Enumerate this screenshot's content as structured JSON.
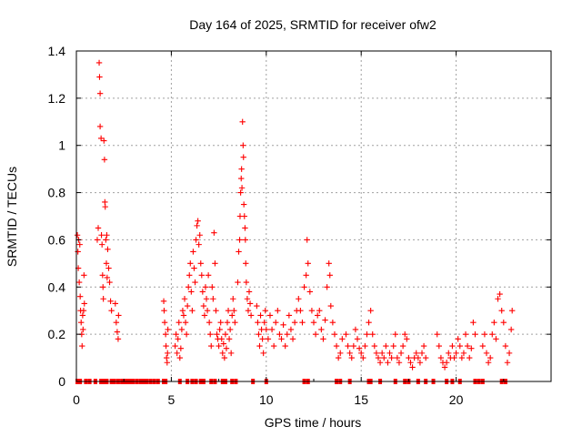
{
  "chart_data": {
    "type": "scatter",
    "title": "Day 164 of 2025, SRMTID for receiver ofw2",
    "xlabel": "GPS time / hours",
    "ylabel": "SRMTID / TECUs",
    "xlim": [
      0,
      25
    ],
    "ylim": [
      0,
      1.4
    ],
    "xticks": [
      0,
      5,
      10,
      15,
      20
    ],
    "yticks": [
      0,
      0.2,
      0.4,
      0.6,
      0.8,
      1,
      1.2,
      1.4
    ],
    "xtick_labels": [
      "0",
      "5",
      "10",
      "15",
      "20"
    ],
    "ytick_labels": [
      "0",
      "0.2",
      "0.4",
      "0.6",
      "0.8",
      "1",
      "1.2",
      "1.4"
    ],
    "grid": true,
    "marker": "plus",
    "series": [
      {
        "name": "SRMTID",
        "color": "#ff0000",
        "points": [
          [
            0.05,
            0.62
          ],
          [
            0.08,
            0.55
          ],
          [
            0.1,
            0.48
          ],
          [
            0.12,
            0.6
          ],
          [
            0.15,
            0.42
          ],
          [
            0.18,
            0.58
          ],
          [
            0.2,
            0.36
          ],
          [
            0.22,
            0.3
          ],
          [
            0.25,
            0.25
          ],
          [
            0.28,
            0.2
          ],
          [
            0.3,
            0.15
          ],
          [
            0.33,
            0.28
          ],
          [
            0.35,
            0.22
          ],
          [
            0.38,
            0.3
          ],
          [
            0.4,
            0.45
          ],
          [
            0.42,
            0.33
          ],
          [
            1.1,
            0.6
          ],
          [
            1.15,
            0.65
          ],
          [
            1.2,
            1.35
          ],
          [
            1.22,
            1.29
          ],
          [
            1.25,
            1.22
          ],
          [
            1.25,
            1.08
          ],
          [
            1.3,
            1.03
          ],
          [
            1.32,
            0.62
          ],
          [
            1.35,
            0.58
          ],
          [
            1.38,
            0.45
          ],
          [
            1.4,
            0.4
          ],
          [
            1.42,
            0.35
          ],
          [
            1.45,
            1.02
          ],
          [
            1.48,
            0.94
          ],
          [
            1.5,
            0.76
          ],
          [
            1.52,
            0.74
          ],
          [
            1.55,
            0.6
          ],
          [
            1.58,
            0.5
          ],
          [
            1.6,
            0.62
          ],
          [
            1.62,
            0.44
          ],
          [
            1.65,
            0.56
          ],
          [
            1.7,
            0.48
          ],
          [
            1.75,
            0.42
          ],
          [
            1.8,
            0.34
          ],
          [
            1.85,
            0.3
          ],
          [
            2.05,
            0.33
          ],
          [
            2.1,
            0.25
          ],
          [
            2.15,
            0.21
          ],
          [
            2.2,
            0.18
          ],
          [
            2.22,
            0.28
          ],
          [
            4.6,
            0.34
          ],
          [
            4.62,
            0.3
          ],
          [
            4.65,
            0.25
          ],
          [
            4.7,
            0.2
          ],
          [
            4.72,
            0.15
          ],
          [
            4.75,
            0.1
          ],
          [
            4.78,
            0.08
          ],
          [
            4.8,
            0.12
          ],
          [
            4.82,
            0.22
          ],
          [
            5.2,
            0.15
          ],
          [
            5.25,
            0.2
          ],
          [
            5.3,
            0.12
          ],
          [
            5.35,
            0.18
          ],
          [
            5.4,
            0.25
          ],
          [
            5.45,
            0.1
          ],
          [
            5.5,
            0.14
          ],
          [
            5.55,
            0.22
          ],
          [
            5.6,
            0.3
          ],
          [
            5.65,
            0.28
          ],
          [
            5.7,
            0.35
          ],
          [
            5.75,
            0.25
          ],
          [
            5.8,
            0.2
          ],
          [
            5.85,
            0.32
          ],
          [
            5.9,
            0.4
          ],
          [
            5.95,
            0.45
          ],
          [
            6.0,
            0.5
          ],
          [
            6.05,
            0.38
          ],
          [
            6.1,
            0.3
          ],
          [
            6.15,
            0.55
          ],
          [
            6.2,
            0.48
          ],
          [
            6.25,
            0.42
          ],
          [
            6.3,
            0.6
          ],
          [
            6.35,
            0.66
          ],
          [
            6.4,
            0.68
          ],
          [
            6.45,
            0.58
          ],
          [
            6.5,
            0.62
          ],
          [
            6.55,
            0.5
          ],
          [
            6.6,
            0.45
          ],
          [
            6.65,
            0.38
          ],
          [
            6.7,
            0.32
          ],
          [
            6.75,
            0.28
          ],
          [
            6.8,
            0.4
          ],
          [
            6.85,
            0.35
          ],
          [
            6.9,
            0.3
          ],
          [
            6.95,
            0.45
          ],
          [
            7.0,
            0.25
          ],
          [
            7.05,
            0.2
          ],
          [
            7.1,
            0.15
          ],
          [
            7.15,
            0.4
          ],
          [
            7.2,
            0.35
          ],
          [
            7.25,
            0.63
          ],
          [
            7.3,
            0.5
          ],
          [
            7.35,
            0.3
          ],
          [
            7.4,
            0.2
          ],
          [
            7.45,
            0.18
          ],
          [
            7.5,
            0.15
          ],
          [
            7.55,
            0.22
          ],
          [
            7.6,
            0.25
          ],
          [
            7.65,
            0.18
          ],
          [
            7.7,
            0.12
          ],
          [
            7.75,
            0.16
          ],
          [
            7.8,
            0.1
          ],
          [
            7.85,
            0.2
          ],
          [
            7.9,
            0.14
          ],
          [
            7.95,
            0.25
          ],
          [
            8.0,
            0.3
          ],
          [
            8.05,
            0.18
          ],
          [
            8.1,
            0.22
          ],
          [
            8.15,
            0.12
          ],
          [
            8.2,
            0.28
          ],
          [
            8.25,
            0.35
          ],
          [
            8.3,
            0.3
          ],
          [
            8.35,
            0.25
          ],
          [
            8.5,
            0.42
          ],
          [
            8.55,
            0.55
          ],
          [
            8.6,
            0.6
          ],
          [
            8.62,
            0.7
          ],
          [
            8.65,
            0.8
          ],
          [
            8.68,
            0.86
          ],
          [
            8.7,
            0.9
          ],
          [
            8.72,
            0.82
          ],
          [
            8.75,
            1.1
          ],
          [
            8.78,
            1.0
          ],
          [
            8.8,
            0.95
          ],
          [
            8.82,
            0.75
          ],
          [
            8.85,
            0.7
          ],
          [
            8.88,
            0.65
          ],
          [
            8.9,
            0.6
          ],
          [
            8.92,
            0.5
          ],
          [
            8.95,
            0.42
          ],
          [
            9.0,
            0.35
          ],
          [
            9.05,
            0.3
          ],
          [
            9.1,
            0.38
          ],
          [
            9.15,
            0.33
          ],
          [
            9.2,
            0.28
          ],
          [
            9.5,
            0.32
          ],
          [
            9.55,
            0.25
          ],
          [
            9.6,
            0.2
          ],
          [
            9.65,
            0.15
          ],
          [
            9.7,
            0.28
          ],
          [
            9.75,
            0.22
          ],
          [
            9.8,
            0.18
          ],
          [
            9.85,
            0.12
          ],
          [
            9.9,
            0.25
          ],
          [
            9.95,
            0.3
          ],
          [
            10.0,
            0.22
          ],
          [
            10.1,
            0.18
          ],
          [
            10.2,
            0.28
          ],
          [
            10.3,
            0.22
          ],
          [
            10.4,
            0.15
          ],
          [
            10.5,
            0.25
          ],
          [
            10.6,
            0.3
          ],
          [
            10.7,
            0.2
          ],
          [
            10.8,
            0.18
          ],
          [
            10.9,
            0.24
          ],
          [
            11.0,
            0.15
          ],
          [
            11.1,
            0.2
          ],
          [
            11.2,
            0.28
          ],
          [
            11.3,
            0.22
          ],
          [
            11.4,
            0.18
          ],
          [
            11.5,
            0.25
          ],
          [
            11.6,
            0.3
          ],
          [
            11.7,
            0.35
          ],
          [
            11.8,
            0.3
          ],
          [
            11.9,
            0.25
          ],
          [
            12.0,
            0.4
          ],
          [
            12.1,
            0.45
          ],
          [
            12.15,
            0.6
          ],
          [
            12.2,
            0.5
          ],
          [
            12.3,
            0.38
          ],
          [
            12.4,
            0.3
          ],
          [
            12.5,
            0.25
          ],
          [
            12.6,
            0.2
          ],
          [
            12.7,
            0.28
          ],
          [
            12.8,
            0.3
          ],
          [
            12.9,
            0.22
          ],
          [
            13.0,
            0.18
          ],
          [
            13.1,
            0.26
          ],
          [
            13.2,
            0.4
          ],
          [
            13.3,
            0.5
          ],
          [
            13.35,
            0.45
          ],
          [
            13.4,
            0.32
          ],
          [
            13.5,
            0.25
          ],
          [
            13.6,
            0.2
          ],
          [
            13.7,
            0.15
          ],
          [
            13.8,
            0.1
          ],
          [
            13.9,
            0.12
          ],
          [
            14.0,
            0.18
          ],
          [
            14.2,
            0.2
          ],
          [
            14.3,
            0.15
          ],
          [
            14.4,
            0.12
          ],
          [
            14.5,
            0.1
          ],
          [
            14.6,
            0.15
          ],
          [
            14.7,
            0.22
          ],
          [
            14.8,
            0.18
          ],
          [
            14.9,
            0.14
          ],
          [
            15.0,
            0.12
          ],
          [
            15.1,
            0.1
          ],
          [
            15.2,
            0.15
          ],
          [
            15.3,
            0.2
          ],
          [
            15.4,
            0.25
          ],
          [
            15.5,
            0.3
          ],
          [
            15.6,
            0.2
          ],
          [
            15.7,
            0.15
          ],
          [
            15.8,
            0.12
          ],
          [
            15.9,
            0.1
          ],
          [
            16.0,
            0.08
          ],
          [
            16.1,
            0.12
          ],
          [
            16.2,
            0.1
          ],
          [
            16.3,
            0.15
          ],
          [
            16.4,
            0.08
          ],
          [
            16.5,
            0.12
          ],
          [
            16.6,
            0.1
          ],
          [
            16.7,
            0.15
          ],
          [
            16.8,
            0.2
          ],
          [
            16.9,
            0.1
          ],
          [
            17.0,
            0.08
          ],
          [
            17.1,
            0.12
          ],
          [
            17.2,
            0.15
          ],
          [
            17.3,
            0.2
          ],
          [
            17.4,
            0.18
          ],
          [
            17.5,
            0.1
          ],
          [
            17.6,
            0.08
          ],
          [
            17.7,
            0.06
          ],
          [
            17.8,
            0.1
          ],
          [
            17.9,
            0.12
          ],
          [
            18.0,
            0.1
          ],
          [
            18.1,
            0.08
          ],
          [
            18.2,
            0.12
          ],
          [
            18.3,
            0.15
          ],
          [
            18.4,
            0.1
          ],
          [
            19.0,
            0.2
          ],
          [
            19.1,
            0.15
          ],
          [
            19.2,
            0.1
          ],
          [
            19.3,
            0.08
          ],
          [
            19.4,
            0.06
          ],
          [
            19.5,
            0.08
          ],
          [
            19.6,
            0.12
          ],
          [
            19.7,
            0.1
          ],
          [
            19.8,
            0.15
          ],
          [
            19.9,
            0.1
          ],
          [
            20.0,
            0.12
          ],
          [
            20.1,
            0.18
          ],
          [
            20.2,
            0.15
          ],
          [
            20.3,
            0.1
          ],
          [
            20.4,
            0.12
          ],
          [
            20.5,
            0.2
          ],
          [
            20.6,
            0.15
          ],
          [
            20.7,
            0.1
          ],
          [
            20.8,
            0.14
          ],
          [
            20.9,
            0.25
          ],
          [
            21.0,
            0.2
          ],
          [
            21.4,
            0.15
          ],
          [
            21.5,
            0.2
          ],
          [
            21.6,
            0.12
          ],
          [
            21.7,
            0.08
          ],
          [
            21.8,
            0.1
          ],
          [
            21.9,
            0.2
          ],
          [
            22.0,
            0.25
          ],
          [
            22.1,
            0.18
          ],
          [
            22.2,
            0.35
          ],
          [
            22.3,
            0.37
          ],
          [
            22.4,
            0.3
          ],
          [
            22.5,
            0.25
          ],
          [
            22.6,
            0.15
          ],
          [
            22.7,
            0.08
          ],
          [
            22.8,
            0.12
          ],
          [
            22.9,
            0.22
          ],
          [
            22.95,
            0.3
          ]
        ],
        "zero_points": [
          0.05,
          0.2,
          0.5,
          0.7,
          1.0,
          1.3,
          1.45,
          1.6,
          1.85,
          2.0,
          2.2,
          2.4,
          2.55,
          2.7,
          2.85,
          3.0,
          3.2,
          3.4,
          3.55,
          3.7,
          3.9,
          4.1,
          4.3,
          4.6,
          4.7,
          5.45,
          5.85,
          6.1,
          6.3,
          6.55,
          6.7,
          7.1,
          7.3,
          7.7,
          7.85,
          8.2,
          8.4,
          9.3,
          10.0,
          12.0,
          12.2,
          13.7,
          13.9,
          14.4,
          15.4,
          15.5,
          16.0,
          16.8,
          17.3,
          17.5,
          18.0,
          18.4,
          18.8,
          19.5,
          19.8,
          20.2,
          21.0,
          21.2,
          21.4,
          22.4,
          22.6
        ]
      }
    ]
  }
}
